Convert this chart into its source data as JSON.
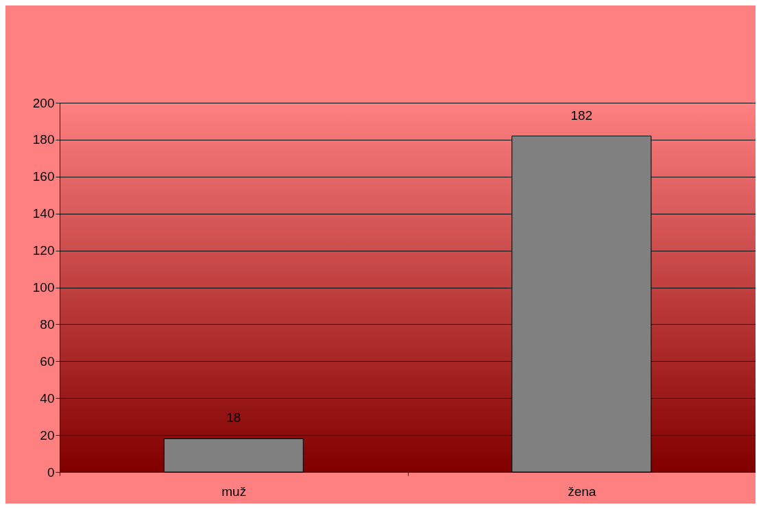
{
  "chart_data": {
    "type": "bar",
    "categories": [
      "muž",
      "žena"
    ],
    "values": [
      18,
      182
    ],
    "color": "#808080",
    "ylim": [
      0,
      200
    ],
    "yticks": [
      0,
      20,
      40,
      60,
      80,
      100,
      120,
      140,
      160,
      180,
      200
    ],
    "grid": "y",
    "data_labels": true
  }
}
